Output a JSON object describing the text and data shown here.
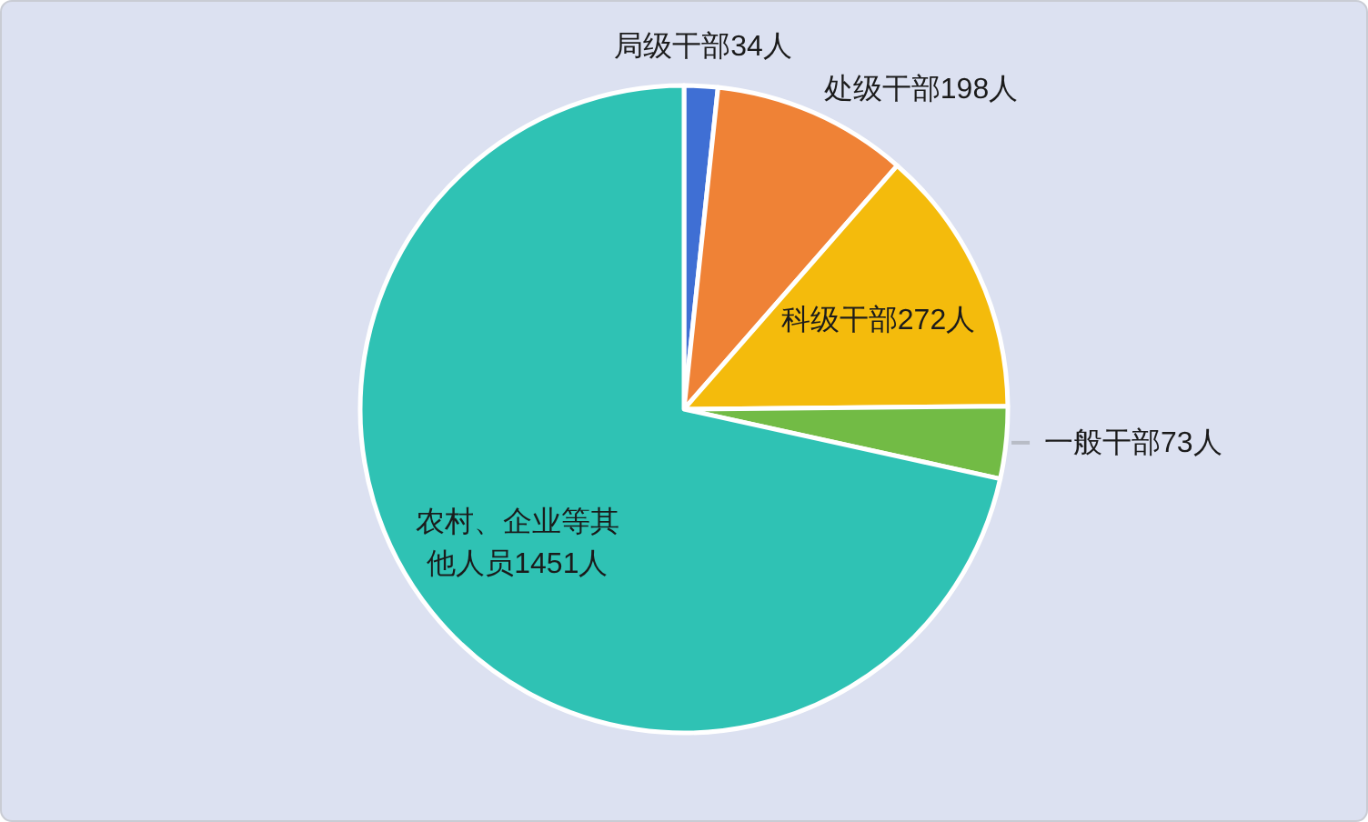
{
  "chart_data": {
    "type": "pie",
    "categories": [
      "局级干部",
      "处级干部",
      "科级干部",
      "一般干部",
      "农村、企业等其他人员"
    ],
    "values": [
      34,
      198,
      272,
      73,
      1451
    ],
    "value_labels": [
      "34人",
      "198人",
      "272人",
      "73人",
      "1451人"
    ],
    "colors": [
      "#3f6fd4",
      "#ef8236",
      "#f4bb0c",
      "#72bb45",
      "#2fc2b4"
    ]
  }
}
